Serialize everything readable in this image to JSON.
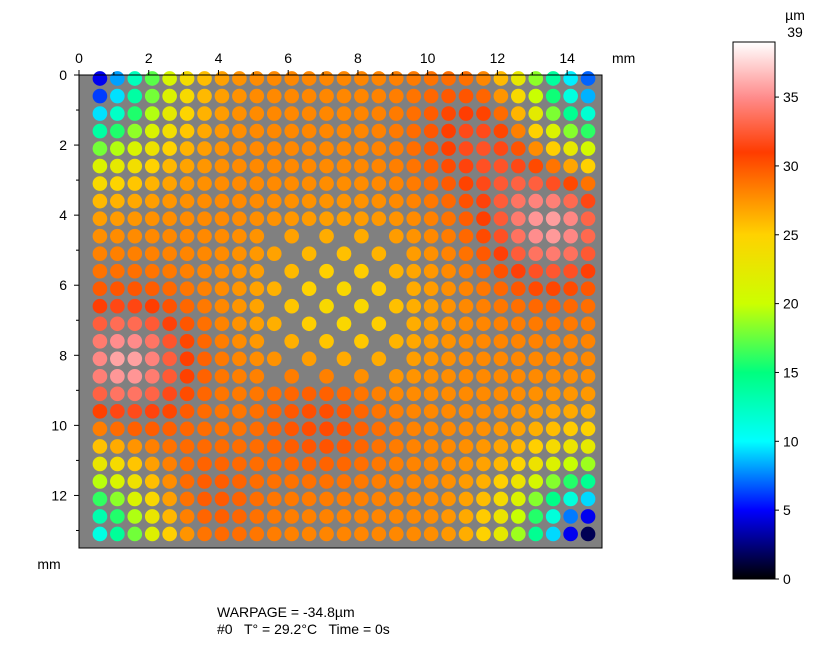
{
  "chart_data": {
    "type": "heatmap",
    "title": "",
    "xlabel": "mm",
    "ylabel": "mm",
    "xlim": [
      0,
      15
    ],
    "ylim": [
      0,
      13.5
    ],
    "y_inverted": true,
    "x_ticks": [
      "0",
      "2",
      "4",
      "6",
      "8",
      "10",
      "12",
      "14"
    ],
    "y_ticks": [
      "0",
      "2",
      "4",
      "6",
      "8",
      "10",
      "12"
    ],
    "background": "#808080",
    "grid": {
      "columns": 29,
      "rows": 27,
      "pitch_mm": 0.5,
      "x_start_mm": 0.6,
      "y_start_mm": 0.1,
      "depopulated_region_mm": {
        "x": [
          5.5,
          9.5
        ],
        "y": [
          4.4,
          8.8
        ],
        "pattern": "staggered"
      }
    },
    "value_field_um": {
      "description": "height per bump, microns",
      "base": 28,
      "corner_low": {
        "top-left": 3,
        "top-right": 6,
        "bottom-left": 9,
        "bottom-right": 0
      },
      "high_spots": [
        {
          "x": 13.6,
          "y": 4.2,
          "peak": 36
        },
        {
          "x": 1.3,
          "y": 8.2,
          "peak": 36
        },
        {
          "x": 11.8,
          "y": 1.6,
          "peak": 33
        },
        {
          "x": 7.0,
          "y": 9.6,
          "peak": 31
        },
        {
          "x": 3.2,
          "y": 12.3,
          "peak": 31
        }
      ],
      "center_value": 24
    },
    "colorbar": {
      "unit": "µm",
      "min": 0,
      "max": 39,
      "max_label": "39",
      "ticks": [
        "0",
        "5",
        "10",
        "15",
        "20",
        "25",
        "30",
        "35"
      ],
      "colors": [
        "#000000",
        "#0000ff",
        "#00ffff",
        "#00ff7f",
        "#ccff00",
        "#ffd200",
        "#ff3c00",
        "#ff8c8c",
        "#ffffff"
      ],
      "color_stops": [
        0,
        5,
        10,
        15,
        20,
        25,
        31,
        35,
        39
      ]
    }
  },
  "caption": {
    "warpage": "WARPAGE = -34.8µm",
    "info": "#0   T° = 29.2°C   Time = 0s"
  }
}
